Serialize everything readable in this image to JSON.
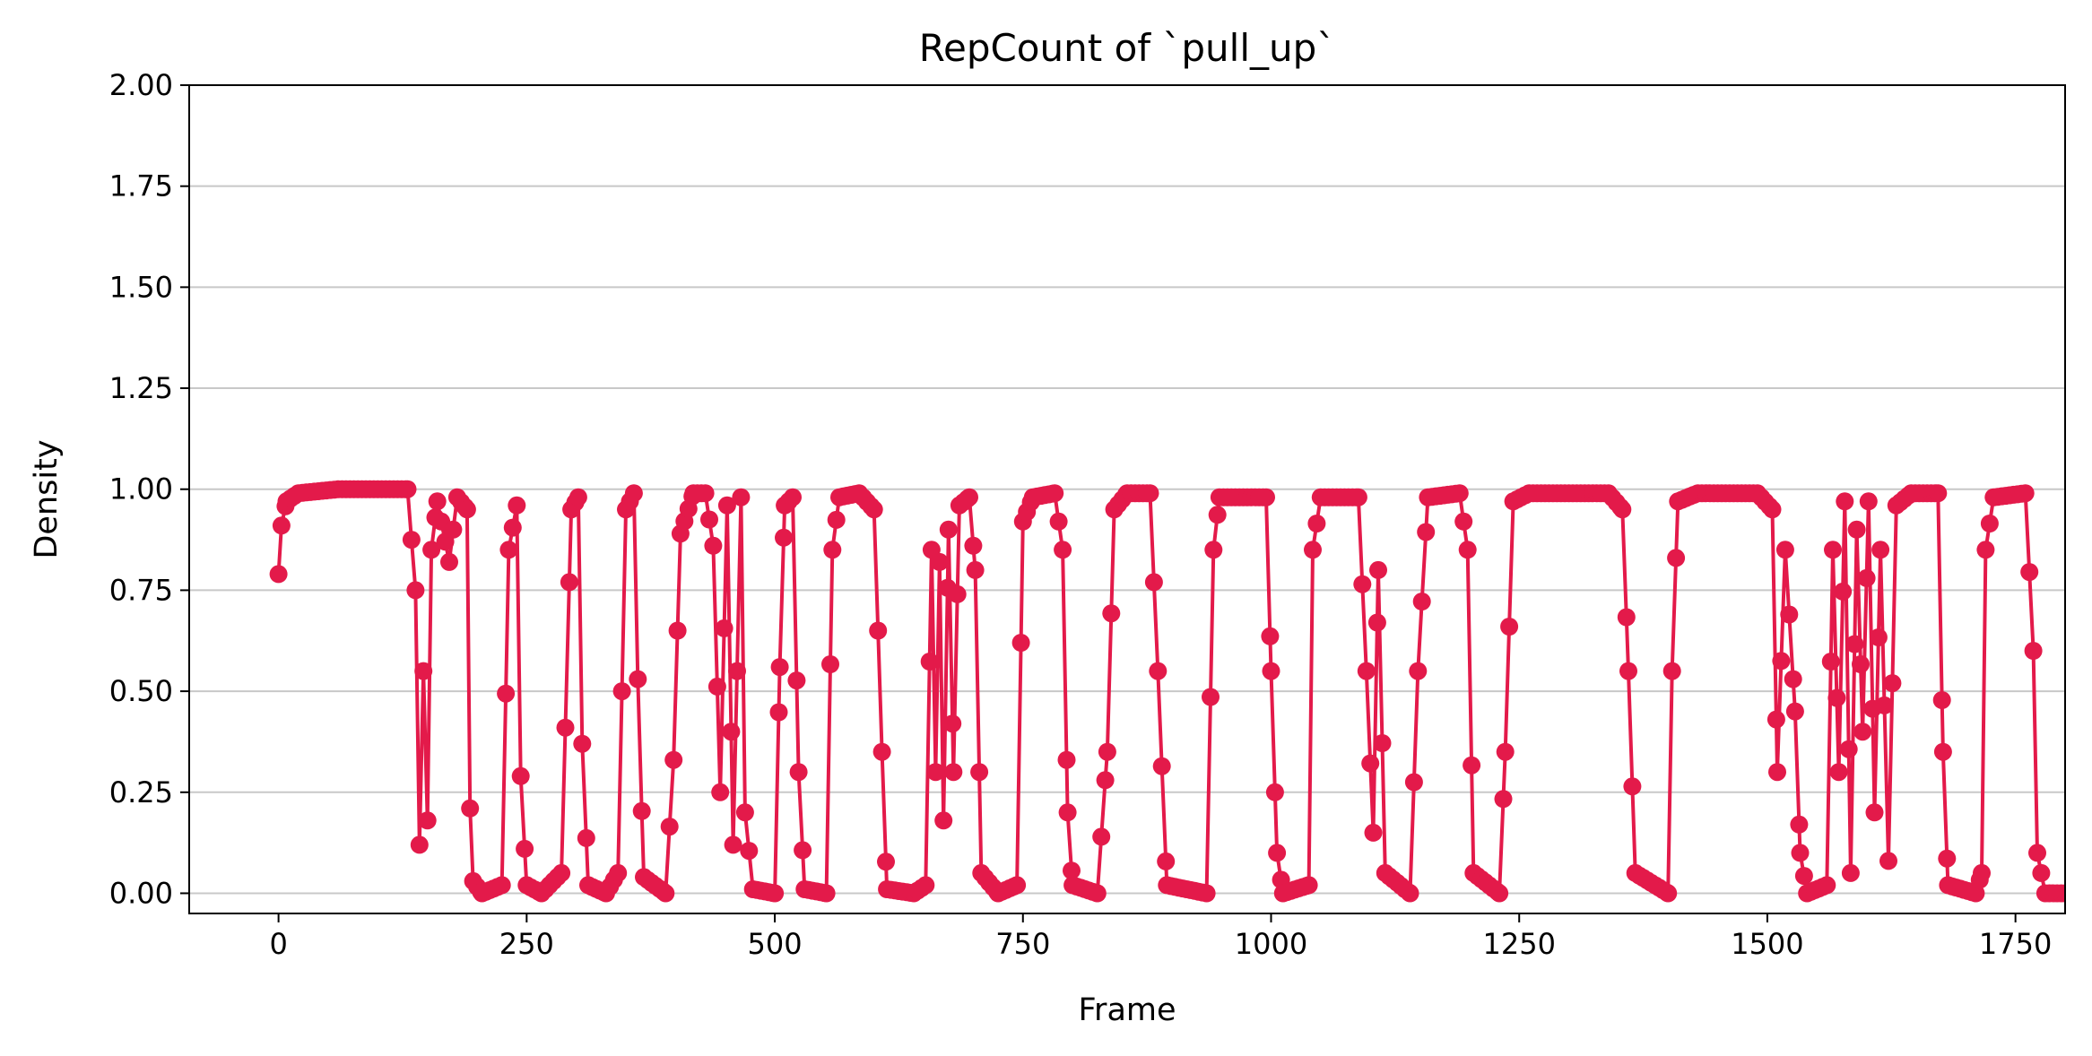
{
  "chart_data": {
    "type": "line",
    "title": "RepCount of `pull_up`",
    "xlabel": "Frame",
    "ylabel": "Density",
    "xlim": [
      -90,
      1800
    ],
    "ylim": [
      -0.05,
      2.0
    ],
    "x_ticks": [
      0,
      250,
      500,
      750,
      1000,
      1250,
      1500,
      1750
    ],
    "x_tick_labels": [
      "0",
      "250",
      "500",
      "750",
      "1000",
      "1250",
      "1500",
      "1750"
    ],
    "y_ticks": [
      0.0,
      0.25,
      0.5,
      0.75,
      1.0,
      1.25,
      1.5,
      1.75,
      2.0
    ],
    "y_tick_labels": [
      "0.00",
      "0.25",
      "0.50",
      "0.75",
      "1.00",
      "1.25",
      "1.50",
      "1.75",
      "2.00"
    ],
    "grid": "y-axis only",
    "legend": "none",
    "series": [
      {
        "color": "#e31a4a",
        "marker": "circle",
        "keyframes": [
          [
            0,
            0.79
          ],
          [
            3,
            0.91
          ],
          [
            8,
            0.97
          ],
          [
            20,
            0.99
          ],
          [
            60,
            1.0
          ],
          [
            130,
            1.0
          ],
          [
            138,
            0.75
          ],
          [
            142,
            0.12
          ],
          [
            146,
            0.55
          ],
          [
            150,
            0.18
          ],
          [
            154,
            0.85
          ],
          [
            160,
            0.97
          ],
          [
            172,
            0.82
          ],
          [
            180,
            0.98
          ],
          [
            190,
            0.95
          ],
          [
            193,
            0.21
          ],
          [
            196,
            0.03
          ],
          [
            205,
            0.0
          ],
          [
            225,
            0.02
          ],
          [
            232,
            0.85
          ],
          [
            240,
            0.96
          ],
          [
            244,
            0.29
          ],
          [
            250,
            0.02
          ],
          [
            265,
            0.0
          ],
          [
            285,
            0.05
          ],
          [
            295,
            0.95
          ],
          [
            302,
            0.98
          ],
          [
            306,
            0.37
          ],
          [
            312,
            0.02
          ],
          [
            330,
            0.0
          ],
          [
            342,
            0.05
          ],
          [
            350,
            0.95
          ],
          [
            358,
            0.99
          ],
          [
            362,
            0.53
          ],
          [
            368,
            0.04
          ],
          [
            390,
            0.0
          ],
          [
            398,
            0.33
          ],
          [
            405,
            0.89
          ],
          [
            418,
            0.99
          ],
          [
            430,
            0.99
          ],
          [
            438,
            0.86
          ],
          [
            445,
            0.25
          ],
          [
            452,
            0.96
          ],
          [
            458,
            0.12
          ],
          [
            466,
            0.98
          ],
          [
            470,
            0.2
          ],
          [
            478,
            0.01
          ],
          [
            500,
            0.0
          ],
          [
            505,
            0.56
          ],
          [
            510,
            0.96
          ],
          [
            518,
            0.98
          ],
          [
            524,
            0.3
          ],
          [
            530,
            0.01
          ],
          [
            552,
            0.0
          ],
          [
            558,
            0.85
          ],
          [
            565,
            0.98
          ],
          [
            585,
            0.99
          ],
          [
            600,
            0.95
          ],
          [
            608,
            0.35
          ],
          [
            613,
            0.01
          ],
          [
            640,
            0.0
          ],
          [
            652,
            0.02
          ],
          [
            658,
            0.85
          ],
          [
            662,
            0.3
          ],
          [
            666,
            0.82
          ],
          [
            670,
            0.18
          ],
          [
            675,
            0.9
          ],
          [
            680,
            0.3
          ],
          [
            686,
            0.96
          ],
          [
            696,
            0.98
          ],
          [
            702,
            0.8
          ],
          [
            708,
            0.05
          ],
          [
            725,
            0.0
          ],
          [
            744,
            0.02
          ],
          [
            750,
            0.92
          ],
          [
            760,
            0.98
          ],
          [
            782,
            0.99
          ],
          [
            790,
            0.85
          ],
          [
            795,
            0.2
          ],
          [
            800,
            0.02
          ],
          [
            825,
            0.0
          ],
          [
            835,
            0.35
          ],
          [
            842,
            0.95
          ],
          [
            855,
            0.99
          ],
          [
            878,
            0.99
          ],
          [
            886,
            0.55
          ],
          [
            895,
            0.02
          ],
          [
            935,
            0.0
          ],
          [
            942,
            0.85
          ],
          [
            948,
            0.98
          ],
          [
            995,
            0.98
          ],
          [
            1000,
            0.55
          ],
          [
            1006,
            0.1
          ],
          [
            1012,
            0.0
          ],
          [
            1038,
            0.02
          ],
          [
            1042,
            0.85
          ],
          [
            1050,
            0.98
          ],
          [
            1088,
            0.98
          ],
          [
            1096,
            0.55
          ],
          [
            1103,
            0.15
          ],
          [
            1108,
            0.8
          ],
          [
            1115,
            0.05
          ],
          [
            1140,
            0.0
          ],
          [
            1148,
            0.55
          ],
          [
            1158,
            0.98
          ],
          [
            1190,
            0.99
          ],
          [
            1198,
            0.85
          ],
          [
            1204,
            0.05
          ],
          [
            1230,
            0.0
          ],
          [
            1236,
            0.35
          ],
          [
            1244,
            0.97
          ],
          [
            1260,
            0.99
          ],
          [
            1340,
            0.99
          ],
          [
            1354,
            0.95
          ],
          [
            1360,
            0.55
          ],
          [
            1367,
            0.05
          ],
          [
            1400,
            0.0
          ],
          [
            1404,
            0.55
          ],
          [
            1410,
            0.97
          ],
          [
            1430,
            0.99
          ],
          [
            1490,
            0.99
          ],
          [
            1505,
            0.95
          ],
          [
            1510,
            0.3
          ],
          [
            1518,
            0.85
          ],
          [
            1528,
            0.45
          ],
          [
            1533,
            0.1
          ],
          [
            1540,
            0.0
          ],
          [
            1560,
            0.02
          ],
          [
            1566,
            0.85
          ],
          [
            1572,
            0.3
          ],
          [
            1578,
            0.97
          ],
          [
            1584,
            0.05
          ],
          [
            1590,
            0.9
          ],
          [
            1596,
            0.4
          ],
          [
            1602,
            0.97
          ],
          [
            1608,
            0.2
          ],
          [
            1614,
            0.85
          ],
          [
            1622,
            0.08
          ],
          [
            1630,
            0.96
          ],
          [
            1645,
            0.99
          ],
          [
            1672,
            0.99
          ],
          [
            1677,
            0.35
          ],
          [
            1682,
            0.02
          ],
          [
            1710,
            0.0
          ],
          [
            1716,
            0.05
          ],
          [
            1720,
            0.85
          ],
          [
            1728,
            0.98
          ],
          [
            1760,
            0.99
          ],
          [
            1768,
            0.6
          ],
          [
            1772,
            0.1
          ],
          [
            1780,
            0.0
          ],
          [
            1800,
            0.0
          ]
        ]
      }
    ]
  }
}
